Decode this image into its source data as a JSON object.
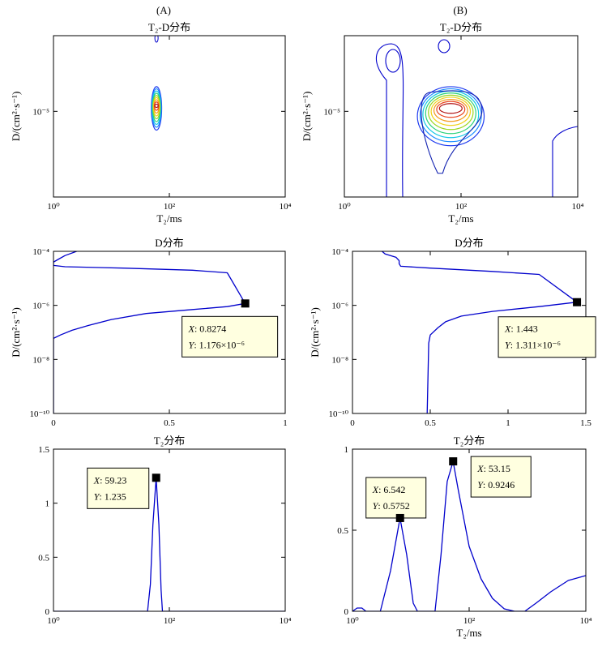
{
  "figure": {
    "panel_letters": [
      "(A)",
      "(B)"
    ],
    "x_label_T2": "T₂/ms",
    "y_label_D": "D/(cm²·s⁻¹)",
    "colors": {
      "curve": "#0000cc",
      "datatip_bg": "#ffffe0",
      "marker": "#000000"
    }
  },
  "chart_data": [
    {
      "id": "A1",
      "type": "contour",
      "title": "T₂-D分布",
      "x_scale": "log",
      "xlim": [
        1,
        10000
      ],
      "x_ticks": [
        {
          "v": 1,
          "label": "10⁰"
        },
        {
          "v": 100,
          "label": "10²"
        },
        {
          "v": 10000,
          "label": "10⁴"
        }
      ],
      "y_scale": "log",
      "ylim": [
        6e-07,
        0.00012
      ],
      "y_ticks": [
        {
          "v": 1e-05,
          "label": "10⁻⁵"
        }
      ],
      "peaks": [
        {
          "x": 60,
          "y": 1.2e-05
        }
      ]
    },
    {
      "id": "B1",
      "type": "contour",
      "title": "T₂-D分布",
      "x_scale": "log",
      "xlim": [
        1,
        10000
      ],
      "x_ticks": [
        {
          "v": 1,
          "label": "10⁰"
        },
        {
          "v": 100,
          "label": "10²"
        },
        {
          "v": 10000,
          "label": "10⁴"
        }
      ],
      "y_scale": "log",
      "ylim": [
        6e-07,
        0.00012
      ],
      "y_ticks": [
        {
          "v": 1e-05,
          "label": "10⁻⁵"
        }
      ],
      "peaks": [
        {
          "x": 55,
          "y": 1.1e-05
        }
      ]
    },
    {
      "id": "A2",
      "type": "line",
      "title": "D分布",
      "x_scale": "linear",
      "xlim": [
        0,
        1
      ],
      "x_ticks": [
        {
          "v": 0,
          "label": "0"
        },
        {
          "v": 0.5,
          "label": "0.5"
        },
        {
          "v": 1,
          "label": "1"
        }
      ],
      "y_scale": "log",
      "ylim": [
        1e-10,
        0.0001
      ],
      "y_ticks": [
        {
          "v": 0.0001,
          "label": "10⁻⁴"
        },
        {
          "v": 1e-06,
          "label": "10⁻⁶"
        },
        {
          "v": 1e-08,
          "label": "10⁻⁸"
        },
        {
          "v": 1e-10,
          "label": "10⁻¹⁰"
        }
      ],
      "series": [
        {
          "points": [
            [
              0.1,
              0.0001
            ],
            [
              0.05,
              7e-05
            ],
            [
              0.02,
              5e-05
            ],
            [
              0.0,
              4e-05
            ],
            [
              0.0,
              3.5e-05
            ],
            [
              0.0,
              3e-05
            ],
            [
              0.05,
              2.7e-05
            ],
            [
              0.3,
              2.4e-05
            ],
            [
              0.6,
              2e-05
            ],
            [
              0.75,
              1.6e-05
            ],
            [
              0.8274,
              1.176e-06
            ],
            [
              0.75,
              9e-07
            ],
            [
              0.6,
              7e-07
            ],
            [
              0.4,
              5e-07
            ],
            [
              0.25,
              3e-07
            ],
            [
              0.15,
              1.8e-07
            ],
            [
              0.08,
              1.2e-07
            ],
            [
              0.03,
              8e-08
            ],
            [
              0.0,
              6e-08
            ],
            [
              0.0,
              1e-10
            ]
          ]
        }
      ],
      "datatip": {
        "x": 0.8274,
        "y": 1.176e-06,
        "lines": [
          {
            "prefix": "X",
            "value": ": 0.8274"
          },
          {
            "prefix": "Y",
            "value": ": 1.176×10⁻⁶"
          }
        ]
      }
    },
    {
      "id": "B2",
      "type": "line",
      "title": "D分布",
      "x_scale": "linear",
      "xlim": [
        0,
        1.5
      ],
      "x_ticks": [
        {
          "v": 0,
          "label": "0"
        },
        {
          "v": 0.5,
          "label": "0.5"
        },
        {
          "v": 1,
          "label": "1"
        },
        {
          "v": 1.5,
          "label": "1.5"
        }
      ],
      "y_scale": "log",
      "ylim": [
        1e-10,
        0.0001
      ],
      "y_ticks": [
        {
          "v": 0.0001,
          "label": "10⁻⁴"
        },
        {
          "v": 1e-06,
          "label": "10⁻⁶"
        },
        {
          "v": 1e-08,
          "label": "10⁻⁸"
        },
        {
          "v": 1e-10,
          "label": "10⁻¹⁰"
        }
      ],
      "series": [
        {
          "points": [
            [
              0.19,
              0.0001
            ],
            [
              0.21,
              8e-05
            ],
            [
              0.28,
              6e-05
            ],
            [
              0.3,
              4.5e-05
            ],
            [
              0.3,
              3.5e-05
            ],
            [
              0.31,
              2.8e-05
            ],
            [
              0.5,
              2.4e-05
            ],
            [
              0.9,
              1.8e-05
            ],
            [
              1.2,
              1.4e-05
            ],
            [
              1.443,
              1.311e-06
            ],
            [
              1.2,
              9e-07
            ],
            [
              0.9,
              6e-07
            ],
            [
              0.7,
              4e-07
            ],
            [
              0.6,
              2.5e-07
            ],
            [
              0.55,
              1.5e-07
            ],
            [
              0.5,
              8e-08
            ],
            [
              0.49,
              4e-08
            ],
            [
              0.48,
              1e-10
            ]
          ]
        }
      ],
      "datatip": {
        "x": 1.443,
        "y": 1.311e-06,
        "lines": [
          {
            "prefix": "X",
            "value": ": 1.443"
          },
          {
            "prefix": "Y",
            "value": ": 1.311×10⁻⁶"
          }
        ]
      }
    },
    {
      "id": "A3",
      "type": "line",
      "title": "T₂分布",
      "x_scale": "log",
      "xlim": [
        1,
        10000
      ],
      "x_ticks": [
        {
          "v": 1,
          "label": "10⁰"
        },
        {
          "v": 100,
          "label": "10²"
        },
        {
          "v": 10000,
          "label": "10⁴"
        }
      ],
      "y_scale": "linear",
      "ylim": [
        0,
        1.5
      ],
      "y_ticks": [
        {
          "v": 0,
          "label": "0"
        },
        {
          "v": 0.5,
          "label": "0.5"
        },
        {
          "v": 1,
          "label": "1"
        },
        {
          "v": 1.5,
          "label": "1.5"
        }
      ],
      "series": [
        {
          "points": [
            [
              1,
              0
            ],
            [
              42,
              0
            ],
            [
              47,
              0.25
            ],
            [
              52,
              0.8
            ],
            [
              59.23,
              1.235
            ],
            [
              66,
              0.8
            ],
            [
              72,
              0.2
            ],
            [
              76,
              0
            ],
            [
              10000,
              0
            ]
          ]
        }
      ],
      "datatip": {
        "x": 59.23,
        "y": 1.235,
        "lines": [
          {
            "prefix": "X",
            "value": ": 59.23"
          },
          {
            "prefix": "Y",
            "value": ": 1.235"
          }
        ]
      }
    },
    {
      "id": "B3",
      "type": "line",
      "title": "T₂分布",
      "x_scale": "log",
      "xlim": [
        1,
        10000
      ],
      "x_ticks": [
        {
          "v": 1,
          "label": "10⁰"
        },
        {
          "v": 100,
          "label": "10²"
        },
        {
          "v": 10000,
          "label": "10⁴"
        }
      ],
      "y_scale": "linear",
      "ylim": [
        0,
        1
      ],
      "y_ticks": [
        {
          "v": 0,
          "label": "0"
        },
        {
          "v": 0.5,
          "label": "0.5"
        },
        {
          "v": 1,
          "label": "1"
        }
      ],
      "series": [
        {
          "points": [
            [
              1,
              0
            ],
            [
              1.2,
              0.02
            ],
            [
              1.45,
              0.02
            ],
            [
              1.7,
              0
            ],
            [
              3,
              0
            ],
            [
              4.5,
              0.25
            ],
            [
              6.542,
              0.5752
            ],
            [
              8.5,
              0.35
            ],
            [
              11,
              0.05
            ],
            [
              13,
              0
            ],
            [
              26,
              0
            ],
            [
              33,
              0.35
            ],
            [
              42,
              0.8
            ],
            [
              53.15,
              0.9246
            ],
            [
              65,
              0.75
            ],
            [
              100,
              0.4
            ],
            [
              160,
              0.2
            ],
            [
              250,
              0.08
            ],
            [
              400,
              0.015
            ],
            [
              600,
              0
            ],
            [
              900,
              0
            ],
            [
              1400,
              0.05
            ],
            [
              2500,
              0.12
            ],
            [
              5000,
              0.19
            ],
            [
              10000,
              0.22
            ]
          ]
        }
      ],
      "datatips": [
        {
          "x": 6.542,
          "y": 0.5752,
          "lines": [
            {
              "prefix": "X",
              "value": ": 6.542"
            },
            {
              "prefix": "Y",
              "value": ": 0.5752"
            }
          ]
        },
        {
          "x": 53.15,
          "y": 0.9246,
          "lines": [
            {
              "prefix": "X",
              "value": ": 53.15"
            },
            {
              "prefix": "Y",
              "value": ": 0.9246"
            }
          ]
        }
      ]
    }
  ]
}
